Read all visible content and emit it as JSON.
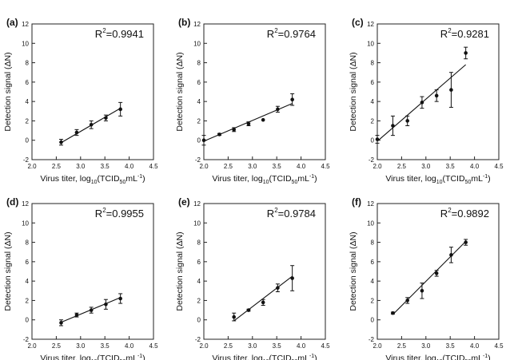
{
  "figure": {
    "x_label_main": "Virus titer, log",
    "x_label_sub1": "10",
    "x_label_paren_open": "(TCID",
    "x_label_sub2": "50",
    "x_label_unit": "mL",
    "x_label_sup": "-1",
    "x_label_close": ")",
    "y_label": "Detection signal (ΔN)"
  },
  "chart_data": [
    {
      "type": "scatter",
      "panel_label": "(a)",
      "r2_label": "R",
      "r2_sup": "2",
      "r2_value": "=0.9941",
      "xlim": [
        2.0,
        4.5
      ],
      "ylim": [
        -2,
        12
      ],
      "x_ticks": [
        "2.0",
        "2.5",
        "3.0",
        "3.5",
        "4.0",
        "4.5"
      ],
      "y_ticks": [
        "-2",
        "0",
        "2",
        "4",
        "6",
        "8",
        "10",
        "12"
      ],
      "points": [
        {
          "x": 2.6,
          "y": -0.2,
          "err": 0.3
        },
        {
          "x": 2.92,
          "y": 0.8,
          "err": 0.3
        },
        {
          "x": 3.22,
          "y": 1.6,
          "err": 0.4
        },
        {
          "x": 3.52,
          "y": 2.3,
          "err": 0.3
        },
        {
          "x": 3.82,
          "y": 3.2,
          "err": 0.7
        }
      ],
      "fit": {
        "x": [
          2.6,
          3.82
        ],
        "y": [
          -0.25,
          3.3
        ]
      }
    },
    {
      "type": "scatter",
      "panel_label": "(b)",
      "r2_label": "R",
      "r2_sup": "2",
      "r2_value": "=0.9764",
      "xlim": [
        2.0,
        4.5
      ],
      "ylim": [
        -2,
        12
      ],
      "x_ticks": [
        "2.0",
        "2.5",
        "3.0",
        "3.5",
        "4.0",
        "4.5"
      ],
      "y_ticks": [
        "-2",
        "0",
        "2",
        "4",
        "6",
        "8",
        "10",
        "12"
      ],
      "points": [
        {
          "x": 2.0,
          "y": 0.0,
          "err": 0.5
        },
        {
          "x": 2.32,
          "y": 0.6,
          "err": 0.1
        },
        {
          "x": 2.62,
          "y": 1.1,
          "err": 0.2
        },
        {
          "x": 2.92,
          "y": 1.7,
          "err": 0.2
        },
        {
          "x": 3.22,
          "y": 2.1,
          "err": 0.0
        },
        {
          "x": 3.52,
          "y": 3.2,
          "err": 0.3
        },
        {
          "x": 3.82,
          "y": 4.2,
          "err": 0.6
        }
      ],
      "fit": {
        "x": [
          2.0,
          3.82
        ],
        "y": [
          -0.1,
          3.8
        ]
      }
    },
    {
      "type": "scatter",
      "panel_label": "(c)",
      "r2_label": "R",
      "r2_sup": "2",
      "r2_value": "=0.9281",
      "xlim": [
        2.0,
        4.5
      ],
      "ylim": [
        -2,
        12
      ],
      "x_ticks": [
        "2.0",
        "2.5",
        "3.0",
        "3.5",
        "4.0",
        "4.5"
      ],
      "y_ticks": [
        "-2",
        "0",
        "2",
        "4",
        "6",
        "8",
        "10",
        "12"
      ],
      "points": [
        {
          "x": 2.0,
          "y": 0.1,
          "err": 0.4
        },
        {
          "x": 2.32,
          "y": 1.5,
          "err": 1.0
        },
        {
          "x": 2.62,
          "y": 2.0,
          "err": 0.5
        },
        {
          "x": 2.92,
          "y": 3.9,
          "err": 0.6
        },
        {
          "x": 3.22,
          "y": 4.6,
          "err": 0.6
        },
        {
          "x": 3.52,
          "y": 5.2,
          "err": 1.8
        },
        {
          "x": 3.82,
          "y": 9.0,
          "err": 0.6
        }
      ],
      "fit": {
        "x": [
          2.0,
          3.82
        ],
        "y": [
          -0.1,
          7.8
        ]
      }
    },
    {
      "type": "scatter",
      "panel_label": "(d)",
      "r2_label": "R",
      "r2_sup": "2",
      "r2_value": "=0.9955",
      "xlim": [
        2.0,
        4.5
      ],
      "ylim": [
        -2,
        12
      ],
      "x_ticks": [
        "2.0",
        "2.5",
        "3.0",
        "3.5",
        "4.0",
        "4.5"
      ],
      "y_ticks": [
        "-2",
        "0",
        "2",
        "4",
        "6",
        "8",
        "10",
        "12"
      ],
      "points": [
        {
          "x": 2.6,
          "y": -0.3,
          "err": 0.3
        },
        {
          "x": 2.92,
          "y": 0.5,
          "err": 0.2
        },
        {
          "x": 3.22,
          "y": 1.0,
          "err": 0.3
        },
        {
          "x": 3.52,
          "y": 1.6,
          "err": 0.5
        },
        {
          "x": 3.82,
          "y": 2.2,
          "err": 0.5
        }
      ],
      "fit": {
        "x": [
          2.6,
          3.82
        ],
        "y": [
          -0.25,
          2.3
        ]
      }
    },
    {
      "type": "scatter",
      "panel_label": "(e)",
      "r2_label": "R",
      "r2_sup": "2",
      "r2_value": "=0.9784",
      "xlim": [
        2.0,
        4.5
      ],
      "ylim": [
        -2,
        12
      ],
      "x_ticks": [
        "2.0",
        "2.5",
        "3.0",
        "3.5",
        "4.0",
        "4.5"
      ],
      "y_ticks": [
        "-2",
        "0",
        "2",
        "4",
        "6",
        "8",
        "10",
        "12"
      ],
      "points": [
        {
          "x": 2.62,
          "y": 0.3,
          "err": 0.4
        },
        {
          "x": 2.92,
          "y": 1.0,
          "err": 0.1
        },
        {
          "x": 3.22,
          "y": 1.8,
          "err": 0.3
        },
        {
          "x": 3.52,
          "y": 3.3,
          "err": 0.4
        },
        {
          "x": 3.82,
          "y": 4.3,
          "err": 1.3
        }
      ],
      "fit": {
        "x": [
          2.62,
          3.82
        ],
        "y": [
          -0.1,
          4.5
        ]
      }
    },
    {
      "type": "scatter",
      "panel_label": "(f)",
      "r2_label": "R",
      "r2_sup": "2",
      "r2_value": "=0.9892",
      "xlim": [
        2.0,
        4.5
      ],
      "ylim": [
        -2,
        12
      ],
      "x_ticks": [
        "2.0",
        "2.5",
        "3.0",
        "3.5",
        "4.0",
        "4.5"
      ],
      "y_ticks": [
        "-2",
        "0",
        "2",
        "4",
        "6",
        "8",
        "10",
        "12"
      ],
      "points": [
        {
          "x": 2.32,
          "y": 0.7,
          "err": 0.1
        },
        {
          "x": 2.62,
          "y": 2.0,
          "err": 0.3
        },
        {
          "x": 2.92,
          "y": 3.0,
          "err": 0.8
        },
        {
          "x": 3.22,
          "y": 4.8,
          "err": 0.3
        },
        {
          "x": 3.52,
          "y": 6.7,
          "err": 0.8
        },
        {
          "x": 3.82,
          "y": 8.0,
          "err": 0.3
        }
      ],
      "fit": {
        "x": [
          2.32,
          3.82
        ],
        "y": [
          0.55,
          8.1
        ]
      }
    }
  ]
}
